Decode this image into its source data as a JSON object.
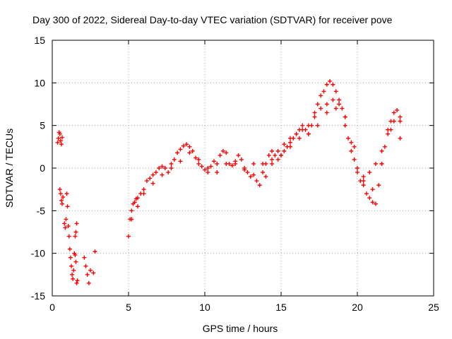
{
  "chart_data": {
    "type": "scatter",
    "title": "Day 300 of 2022, Sidereal Day-to-day VTEC variation (SDTVAR) for receiver pove",
    "xlabel": "GPS time / hours",
    "ylabel": "SDTVAR / TECUs",
    "xlim": [
      0,
      25
    ],
    "ylim": [
      -15,
      15
    ],
    "x_ticks": [
      "0",
      "5",
      "10",
      "15",
      "20",
      "25"
    ],
    "y_ticks": [
      "-15",
      "-10",
      "-5",
      "0",
      "5",
      "10",
      "15"
    ],
    "grid": true,
    "marker": "+",
    "series": [
      {
        "name": "SDTVAR",
        "color": "#ff0000",
        "x": [
          0.35,
          0.4,
          0.45,
          0.5,
          0.55,
          0.6,
          0.65,
          0.5,
          0.55,
          0.6,
          0.65,
          0.7,
          0.8,
          0.85,
          0.9,
          0.95,
          1.0,
          1.05,
          1.1,
          1.15,
          1.2,
          1.25,
          1.3,
          1.35,
          1.4,
          1.45,
          1.5,
          1.55,
          1.6,
          1.5,
          1.55,
          1.6,
          1.65,
          2.1,
          2.2,
          2.3,
          2.4,
          2.5,
          2.7,
          2.8,
          5.0,
          5.1,
          5.2,
          5.3,
          5.4,
          5.5,
          5.6,
          5.8,
          6.0,
          6.2,
          6.4,
          6.6,
          6.8,
          7.0,
          7.2,
          7.4,
          7.6,
          7.8,
          8.0,
          8.2,
          8.4,
          8.6,
          8.8,
          9.0,
          9.2,
          9.4,
          9.6,
          9.8,
          10.0,
          10.2,
          10.4,
          10.6,
          10.8,
          11.0,
          11.2,
          11.4,
          11.6,
          11.8,
          12.0,
          12.2,
          12.4,
          12.6,
          12.8,
          13.0,
          13.2,
          13.4,
          13.6,
          13.8,
          14.0,
          14.2,
          14.4,
          14.6,
          14.8,
          15.0,
          15.2,
          15.4,
          15.6,
          15.8,
          16.0,
          16.2,
          16.4,
          16.6,
          16.8,
          17.0,
          17.2,
          17.4,
          17.6,
          17.8,
          18.0,
          18.2,
          18.4,
          18.6,
          18.8,
          19.0,
          19.2,
          19.4,
          19.6,
          19.8,
          20.0,
          20.2,
          20.4,
          20.6,
          20.8,
          21.0,
          21.2,
          21.4,
          21.6,
          21.8,
          22.0,
          22.2,
          22.4,
          22.6,
          22.8,
          14.0,
          14.4,
          14.8,
          15.2,
          15.6,
          16.0,
          16.4,
          16.8,
          17.2,
          17.6,
          18.0,
          18.4,
          18.8,
          19.2,
          19.6,
          20.0,
          20.4,
          20.8,
          21.2,
          21.6,
          22.0,
          22.4,
          22.8,
          5.2,
          5.6,
          6.0,
          6.6,
          7.2,
          7.8,
          8.4,
          9.0,
          9.6,
          10.2,
          10.8,
          11.4,
          12.0,
          12.6,
          13.2,
          13.8,
          14.4,
          15.0,
          15.6,
          16.2,
          16.8,
          17.4,
          18.0,
          18.6,
          19.2,
          19.8,
          20.4,
          21.0,
          21.6,
          22.2,
          22.8
        ],
        "y": [
          3.0,
          3.5,
          4.2,
          4.0,
          3.2,
          2.8,
          3.6,
          -2.5,
          -3.0,
          -3.8,
          -4.2,
          -3.4,
          -6.5,
          -7.0,
          -6.0,
          -3.0,
          -4.5,
          -6.8,
          -8.0,
          -9.5,
          -10.5,
          -11.5,
          -12.5,
          -13.0,
          -12.0,
          -10.0,
          -8.0,
          -7.5,
          -6.5,
          -10.2,
          -11.0,
          -13.5,
          -13.2,
          -10.5,
          -11.5,
          -12.5,
          -13.5,
          -12.0,
          -12.3,
          -9.8,
          -8.0,
          -6.0,
          -5.0,
          -4.2,
          -4.0,
          -3.6,
          -3.5,
          -3.0,
          -2.5,
          -1.5,
          -1.2,
          -0.8,
          -0.5,
          0.0,
          0.2,
          0.0,
          -0.5,
          0.5,
          1.0,
          1.8,
          2.2,
          2.6,
          2.8,
          2.5,
          2.0,
          1.2,
          0.5,
          0.2,
          -0.2,
          -0.5,
          0.2,
          0.8,
          0.5,
          1.5,
          2.0,
          1.8,
          0.5,
          0.3,
          0.5,
          1.5,
          1.0,
          0.0,
          -0.5,
          -1.0,
          0.5,
          -1.5,
          -2.0,
          -0.5,
          0.5,
          1.5,
          2.0,
          1.5,
          1.0,
          1.5,
          2.0,
          2.5,
          3.0,
          3.5,
          4.0,
          4.5,
          5.0,
          4.5,
          4.0,
          5.0,
          6.5,
          7.5,
          8.5,
          9.0,
          9.8,
          10.2,
          9.8,
          9.0,
          8.0,
          7.0,
          5.0,
          3.5,
          2.0,
          1.0,
          0.0,
          -1.5,
          -2.0,
          -3.0,
          -3.5,
          -4.0,
          -4.2,
          -2.0,
          0.5,
          2.5,
          4.5,
          5.5,
          6.5,
          6.8,
          5.5,
          -1.0,
          0.5,
          2.0,
          2.8,
          3.5,
          4.0,
          4.5,
          5.0,
          6.0,
          7.0,
          7.5,
          8.0,
          7.5,
          6.0,
          3.0,
          -0.5,
          -1.0,
          -0.5,
          0.5,
          2.0,
          4.0,
          5.5,
          3.5,
          -6.0,
          -4.5,
          -3.0,
          -1.8,
          -0.8,
          0.0,
          0.8,
          1.8,
          1.0,
          0.0,
          -0.5,
          0.5,
          0.8,
          -0.2,
          -0.8,
          0.5,
          1.0,
          1.5,
          2.5,
          3.5,
          4.0,
          5.0,
          6.5,
          7.0,
          6.0,
          2.5,
          -1.5,
          -2.5,
          0.5,
          4.5,
          6.0
        ]
      }
    ]
  }
}
